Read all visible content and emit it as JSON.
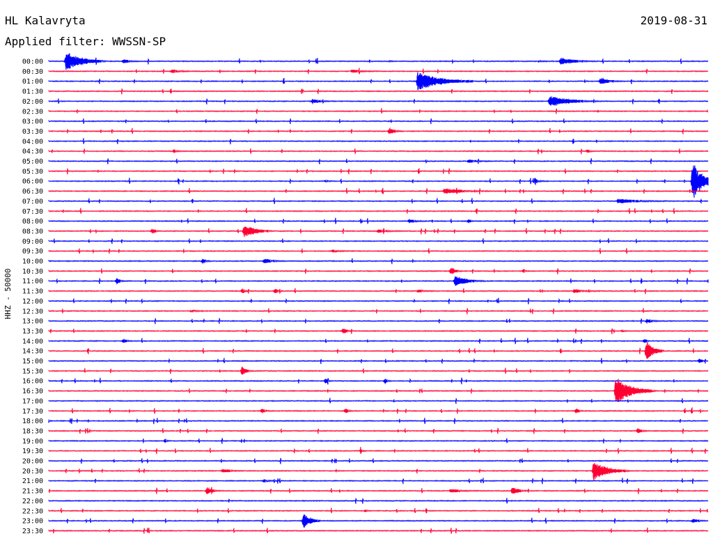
{
  "header": {
    "station": "HL Kalavryta",
    "date": "2019-08-31",
    "filter": "Applied filter: WWSSN-SP"
  },
  "chart_data": {
    "type": "line",
    "title": "HL Kalavryta",
    "date": "2019-08-31",
    "filter": "WWSSN-SP",
    "ylabel": "HHZ - 50000",
    "colors": [
      "#0000ff",
      "#ff0033"
    ],
    "rows": [
      "00:00",
      "00:30",
      "01:00",
      "01:30",
      "02:00",
      "02:30",
      "03:00",
      "03:30",
      "04:00",
      "04:30",
      "05:00",
      "05:30",
      "06:00",
      "06:30",
      "07:00",
      "07:30",
      "08:00",
      "08:30",
      "09:00",
      "09:30",
      "10:00",
      "10:30",
      "11:00",
      "11:30",
      "12:00",
      "12:30",
      "13:00",
      "13:30",
      "14:00",
      "14:30",
      "15:00",
      "15:30",
      "16:00",
      "16:30",
      "17:00",
      "17:30",
      "18:00",
      "18:30",
      "19:00",
      "19:30",
      "20:00",
      "20:30",
      "21:00",
      "21:30",
      "22:00",
      "22:30",
      "23:00",
      "23:30"
    ],
    "events": [
      {
        "row": "00:00",
        "minute": 0.8,
        "amplitude": 1.0,
        "duration": 1.8
      },
      {
        "row": "00:00",
        "minute": 3.4,
        "amplitude": 0.15,
        "duration": 0.8
      },
      {
        "row": "00:00",
        "minute": 15.5,
        "amplitude": 0.04,
        "duration": 0.3
      },
      {
        "row": "00:00",
        "minute": 22.3,
        "amplitude": 0.04,
        "duration": 1.2
      },
      {
        "row": "00:00",
        "minute": 23.3,
        "amplitude": 0.28,
        "duration": 1.6
      },
      {
        "row": "00:30",
        "minute": 5.6,
        "amplitude": 0.12,
        "duration": 1.2
      },
      {
        "row": "00:30",
        "minute": 13.8,
        "amplitude": 0.1,
        "duration": 1.3
      },
      {
        "row": "01:00",
        "minute": 16.8,
        "amplitude": 1.0,
        "duration": 2.5
      },
      {
        "row": "01:00",
        "minute": 25.1,
        "amplitude": 0.32,
        "duration": 1.0
      },
      {
        "row": "02:00",
        "minute": 12.0,
        "amplitude": 0.18,
        "duration": 1.0
      },
      {
        "row": "02:00",
        "minute": 22.8,
        "amplitude": 0.55,
        "duration": 2.2
      },
      {
        "row": "02:30",
        "minute": 30.0,
        "amplitude": 0.08,
        "duration": 0.5
      },
      {
        "row": "03:30",
        "minute": 15.5,
        "amplitude": 0.28,
        "duration": 0.6
      },
      {
        "row": "04:30",
        "minute": 5.7,
        "amplitude": 0.14,
        "duration": 0.4
      },
      {
        "row": "04:30",
        "minute": 24.5,
        "amplitude": 0.14,
        "duration": 0.4
      },
      {
        "row": "05:00",
        "minute": 19.1,
        "amplitude": 0.12,
        "duration": 1.1
      },
      {
        "row": "06:00",
        "minute": 12.6,
        "amplitude": 0.1,
        "duration": 0.3
      },
      {
        "row": "06:00",
        "minute": 22.2,
        "amplitude": 0.12,
        "duration": 0.6
      },
      {
        "row": "06:00",
        "minute": 29.3,
        "amplitude": 2.0,
        "duration": 1.4
      },
      {
        "row": "06:30",
        "minute": 18.0,
        "amplitude": 0.22,
        "duration": 2.2
      },
      {
        "row": "07:00",
        "minute": 25.9,
        "amplitude": 0.18,
        "duration": 2.5
      },
      {
        "row": "08:00",
        "minute": 16.4,
        "amplitude": 0.12,
        "duration": 1.0
      },
      {
        "row": "08:00",
        "minute": 19.1,
        "amplitude": 0.18,
        "duration": 0.3
      },
      {
        "row": "08:30",
        "minute": 4.7,
        "amplitude": 0.26,
        "duration": 0.4
      },
      {
        "row": "08:30",
        "minute": 8.9,
        "amplitude": 0.65,
        "duration": 1.3
      },
      {
        "row": "08:30",
        "minute": 15.0,
        "amplitude": 0.12,
        "duration": 1.2
      },
      {
        "row": "09:30",
        "minute": 12.9,
        "amplitude": 0.1,
        "duration": 1.0
      },
      {
        "row": "10:00",
        "minute": 7.0,
        "amplitude": 0.2,
        "duration": 0.4
      },
      {
        "row": "10:00",
        "minute": 9.8,
        "amplitude": 0.18,
        "duration": 1.0
      },
      {
        "row": "10:30",
        "minute": 18.3,
        "amplitude": 0.35,
        "duration": 0.5
      },
      {
        "row": "10:30",
        "minute": 21.6,
        "amplitude": 0.14,
        "duration": 0.3
      },
      {
        "row": "11:00",
        "minute": 3.1,
        "amplitude": 0.28,
        "duration": 0.4
      },
      {
        "row": "11:00",
        "minute": 18.5,
        "amplitude": 0.55,
        "duration": 1.3
      },
      {
        "row": "11:30",
        "minute": 8.8,
        "amplitude": 0.2,
        "duration": 0.4
      },
      {
        "row": "11:30",
        "minute": 10.3,
        "amplitude": 0.22,
        "duration": 0.4
      },
      {
        "row": "11:30",
        "minute": 16.8,
        "amplitude": 0.1,
        "duration": 0.8
      },
      {
        "row": "11:30",
        "minute": 23.9,
        "amplitude": 0.14,
        "duration": 1.2
      },
      {
        "row": "12:30",
        "minute": 6.5,
        "amplitude": 0.1,
        "duration": 0.8
      },
      {
        "row": "13:00",
        "minute": 27.2,
        "amplitude": 0.16,
        "duration": 0.8
      },
      {
        "row": "13:30",
        "minute": 13.4,
        "amplitude": 0.26,
        "duration": 0.4
      },
      {
        "row": "13:30",
        "minute": 26.1,
        "amplitude": 0.1,
        "duration": 0.3
      },
      {
        "row": "14:00",
        "minute": 3.4,
        "amplitude": 0.22,
        "duration": 0.4
      },
      {
        "row": "14:00",
        "minute": 27.1,
        "amplitude": 0.18,
        "duration": 0.3
      },
      {
        "row": "14:30",
        "minute": 27.2,
        "amplitude": 1.2,
        "duration": 0.8
      },
      {
        "row": "15:00",
        "minute": 29.6,
        "amplitude": 0.18,
        "duration": 0.3
      },
      {
        "row": "15:30",
        "minute": 8.8,
        "amplitude": 0.42,
        "duration": 0.5
      },
      {
        "row": "16:00",
        "minute": 12.6,
        "amplitude": 0.22,
        "duration": 0.3
      },
      {
        "row": "16:00",
        "minute": 15.3,
        "amplitude": 0.22,
        "duration": 0.3
      },
      {
        "row": "16:30",
        "minute": 25.8,
        "amplitude": 1.5,
        "duration": 1.8
      },
      {
        "row": "17:30",
        "minute": 9.7,
        "amplitude": 0.2,
        "duration": 0.4
      },
      {
        "row": "17:30",
        "minute": 13.5,
        "amplitude": 0.2,
        "duration": 0.4
      },
      {
        "row": "17:30",
        "minute": 24.0,
        "amplitude": 0.22,
        "duration": 0.4
      },
      {
        "row": "18:30",
        "minute": 26.8,
        "amplitude": 0.2,
        "duration": 0.6
      },
      {
        "row": "19:00",
        "minute": 5.3,
        "amplitude": 0.14,
        "duration": 0.3
      },
      {
        "row": "19:30",
        "minute": 14.2,
        "amplitude": 0.14,
        "duration": 0.3
      },
      {
        "row": "20:30",
        "minute": 7.9,
        "amplitude": 0.14,
        "duration": 1.0
      },
      {
        "row": "20:30",
        "minute": 24.8,
        "amplitude": 1.0,
        "duration": 1.6
      },
      {
        "row": "21:00",
        "minute": 9.8,
        "amplitude": 0.1,
        "duration": 0.8
      },
      {
        "row": "21:30",
        "minute": 7.2,
        "amplitude": 0.36,
        "duration": 0.6
      },
      {
        "row": "21:30",
        "minute": 18.3,
        "amplitude": 0.12,
        "duration": 1.3
      },
      {
        "row": "21:30",
        "minute": 21.1,
        "amplitude": 0.34,
        "duration": 0.7
      },
      {
        "row": "22:30",
        "minute": 14.4,
        "amplitude": 0.08,
        "duration": 0.3
      },
      {
        "row": "23:00",
        "minute": 11.6,
        "amplitude": 0.78,
        "duration": 0.8
      },
      {
        "row": "23:00",
        "minute": 29.3,
        "amplitude": 0.12,
        "duration": 0.8
      }
    ]
  }
}
